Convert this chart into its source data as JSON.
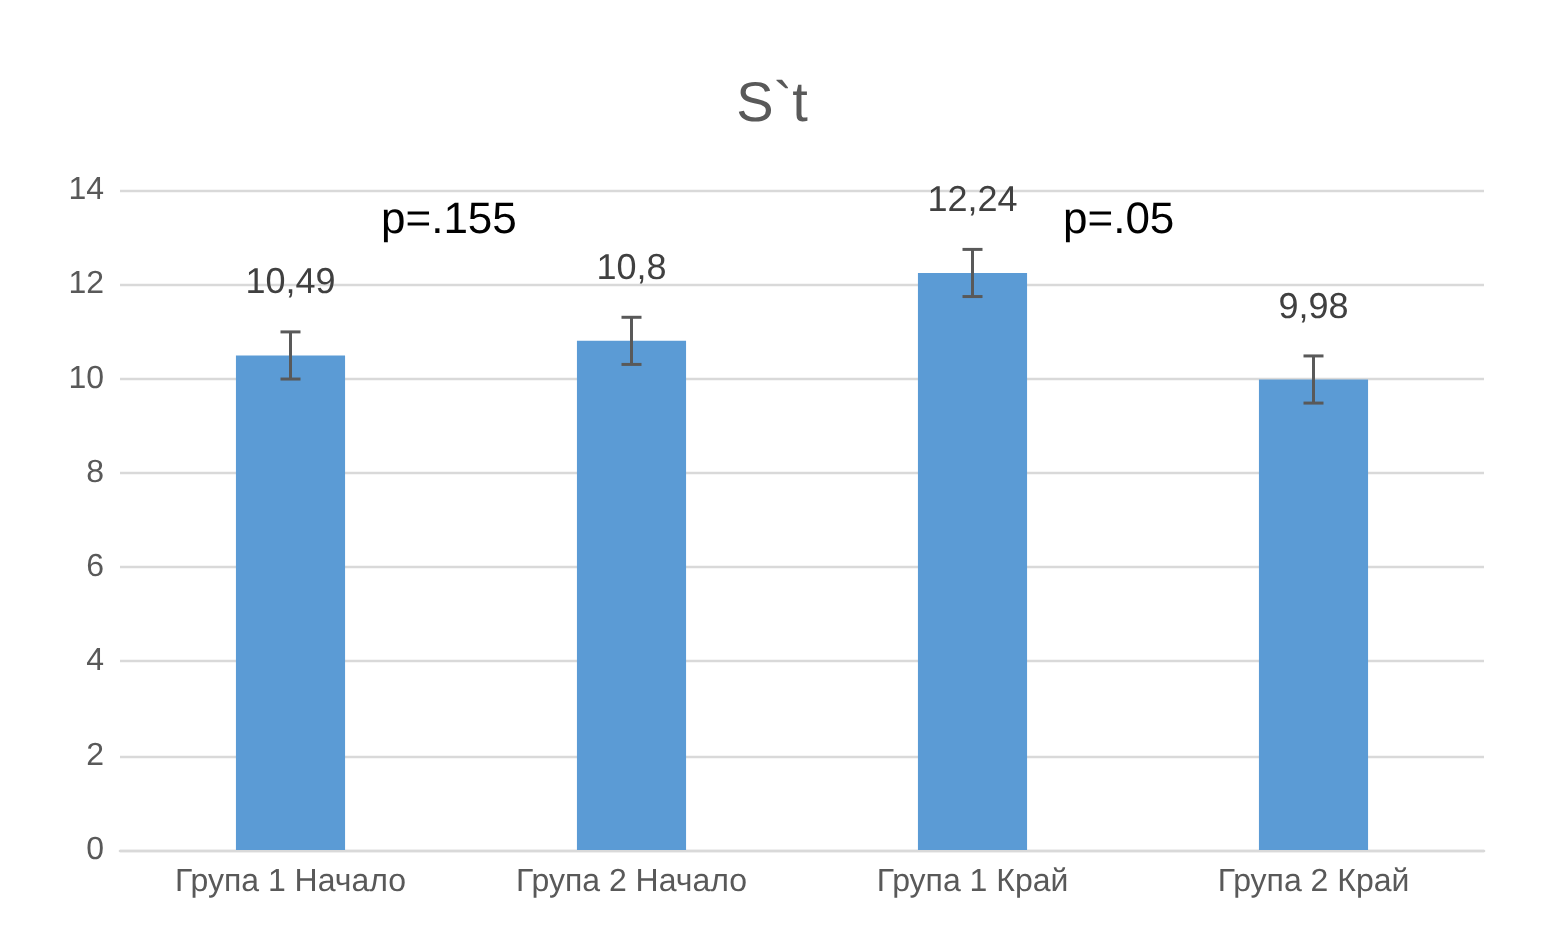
{
  "chart_data": {
    "type": "bar",
    "title": "S`t",
    "categories": [
      "Група 1 Начало",
      "Група 2 Начало",
      "Група 1 Край",
      "Група 2 Край"
    ],
    "values": [
      10.49,
      10.8,
      12.24,
      9.98
    ],
    "color": "#5b9bd5",
    "value_labels": [
      "10,49",
      "10,8",
      "12,24",
      "9,98"
    ],
    "errors": [
      0.5,
      0.5,
      0.5,
      0.5
    ],
    "annotations": [
      "p=.155",
      "p=.05"
    ],
    "ylim": [
      0,
      14
    ],
    "yticks": [
      0,
      2,
      4,
      6,
      8,
      10,
      12,
      14
    ],
    "grid": "y"
  }
}
